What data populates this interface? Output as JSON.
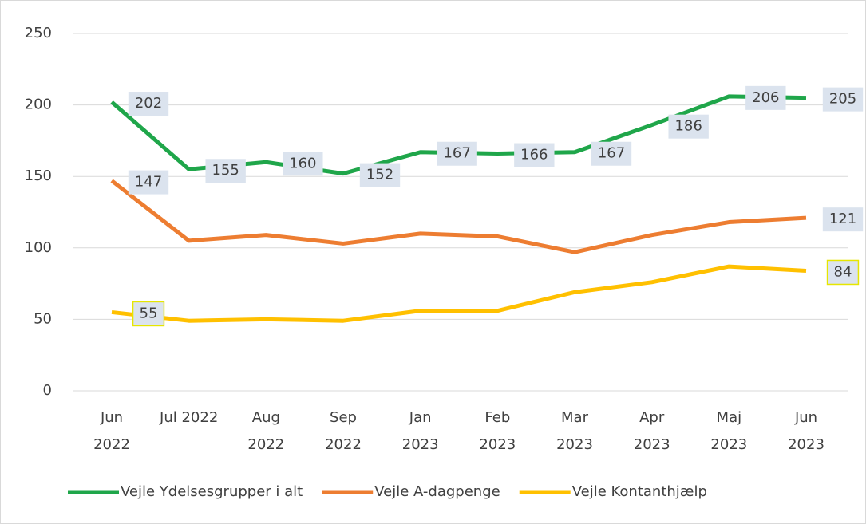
{
  "chart_data": {
    "type": "line",
    "categories": [
      "Jun 2022",
      "Jul 2022",
      "Aug 2022",
      "Sep 2022",
      "Jan 2023",
      "Feb 2023",
      "Mar 2023",
      "Apr 2023",
      "Maj 2023",
      "Jun 2023"
    ],
    "series": [
      {
        "name": "Vejle Ydelsesgrupper i alt",
        "color": "#1fa64a",
        "data_labels": "all",
        "values": [
          202,
          155,
          160,
          152,
          167,
          166,
          167,
          186,
          206,
          205
        ]
      },
      {
        "name": "Vejle A-dagpenge",
        "color": "#ed7d31",
        "data_labels": "ends",
        "values": [
          147,
          105,
          109,
          103,
          110,
          108,
          97,
          109,
          118,
          121
        ]
      },
      {
        "name": "Vejle Kontanthjælp",
        "color": "#ffc000",
        "data_labels": "ends",
        "values": [
          55,
          49,
          50,
          49,
          56,
          56,
          69,
          76,
          87,
          84
        ]
      }
    ],
    "ylim": [
      0,
      250
    ],
    "yticks": [
      0,
      50,
      100,
      150,
      200,
      250
    ],
    "grid": true,
    "legend": "bottom"
  }
}
